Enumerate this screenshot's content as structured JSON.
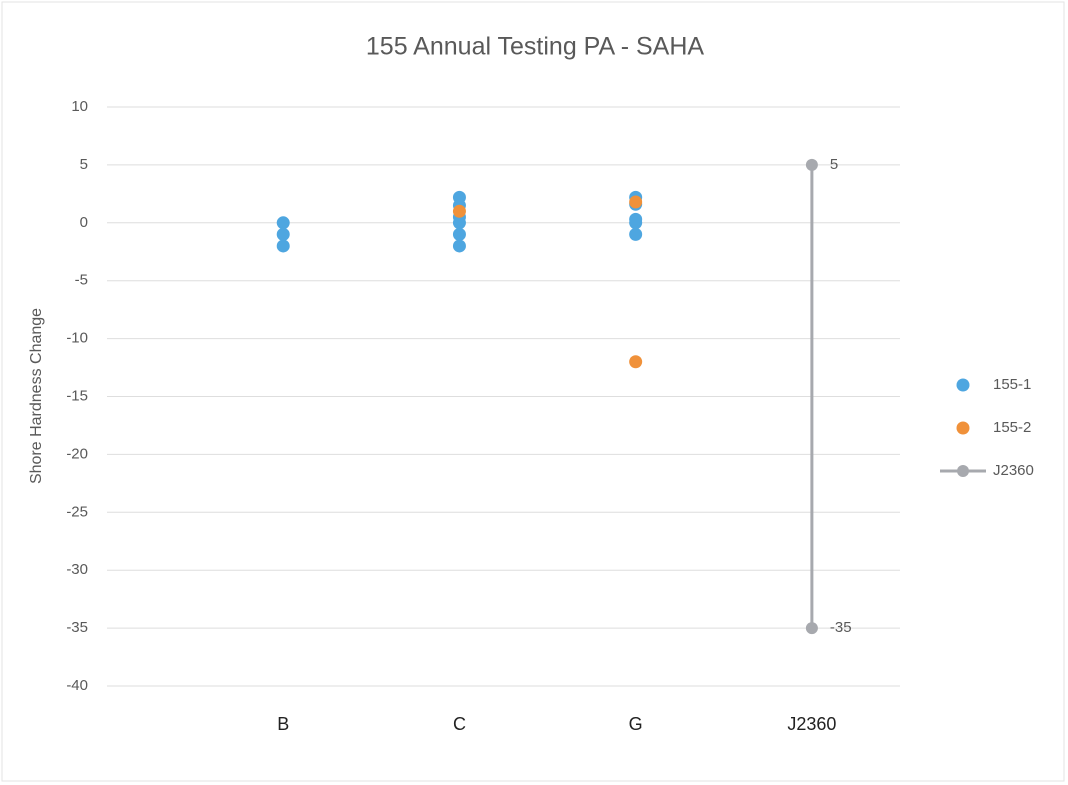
{
  "chart_data": {
    "type": "scatter",
    "title": "155 Annual Testing PA - SAHA",
    "y_label": "Shore Hardness Change",
    "categories": [
      "B",
      "C",
      "G",
      "J2360"
    ],
    "xlim": [
      0,
      4.5
    ],
    "ylim": [
      -40,
      10
    ],
    "yticks": [
      10,
      5,
      0,
      -5,
      -10,
      -15,
      -20,
      -25,
      -30,
      -35,
      -40
    ],
    "grid": true,
    "legend": "right",
    "series": [
      {
        "name": "155-1",
        "color": "#4ea6e0",
        "type": "scatter",
        "x": [
          1,
          1,
          1,
          2,
          2,
          2,
          2,
          2,
          2,
          3,
          3,
          3,
          3,
          3
        ],
        "values": [
          0,
          -1,
          -2,
          2.2,
          1.5,
          0.5,
          0,
          -1,
          -2,
          2.2,
          1.6,
          0.3,
          0,
          -1
        ]
      },
      {
        "name": "155-2",
        "color": "#f0913a",
        "type": "scatter",
        "x": [
          2,
          3,
          3
        ],
        "values": [
          1,
          1.8,
          -12
        ]
      },
      {
        "name": "J2360",
        "color": "#a7a9ae",
        "type": "line",
        "x": [
          4,
          4
        ],
        "values": [
          5,
          -35
        ]
      }
    ]
  }
}
